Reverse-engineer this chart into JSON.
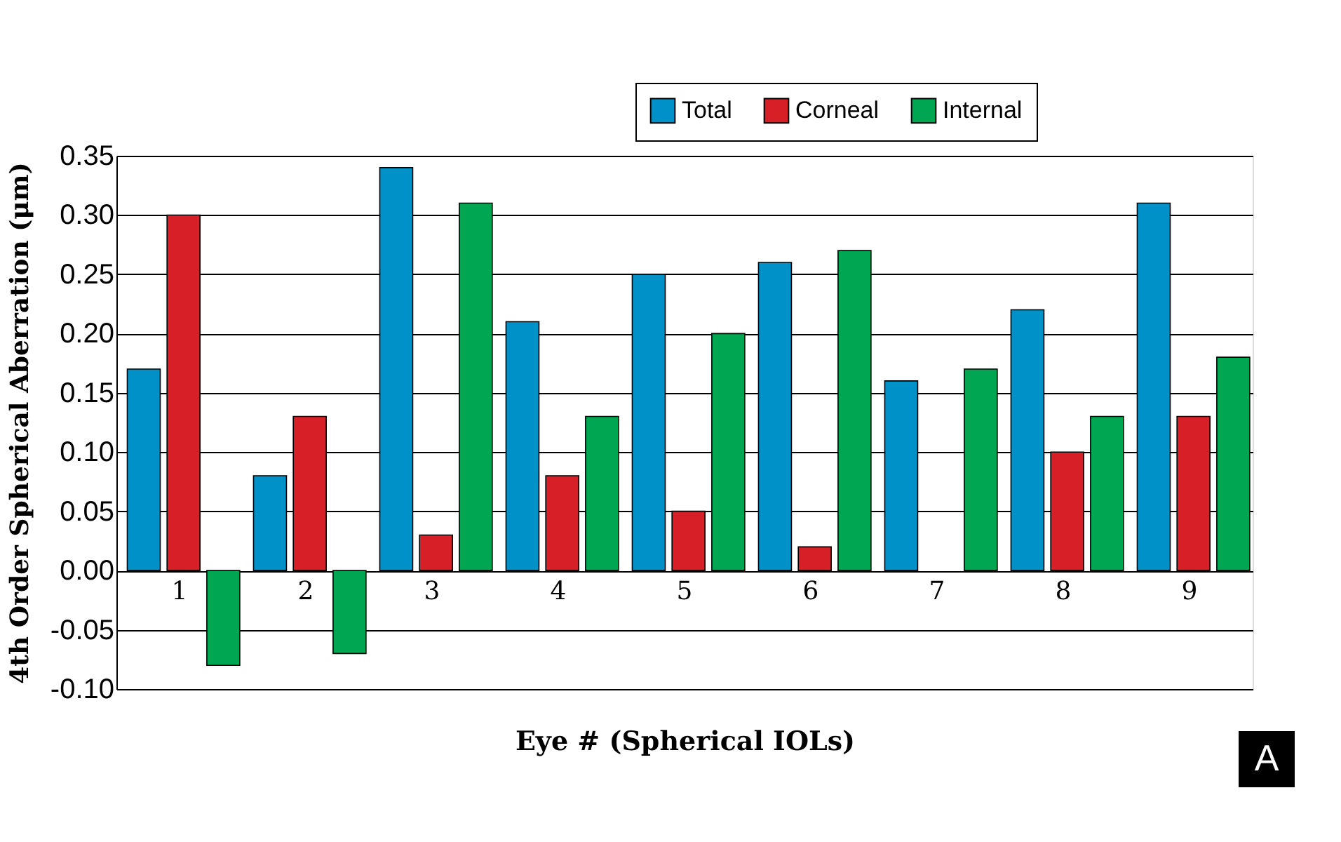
{
  "chart_data": {
    "type": "bar",
    "xlabel": "Eye # (Spherical IOLs)",
    "ylabel": "4th Order Spherical Aberration (μm)",
    "categories": [
      "1",
      "2",
      "3",
      "4",
      "5",
      "6",
      "7",
      "8",
      "9"
    ],
    "series": [
      {
        "name": "Total",
        "color": "#0091c9",
        "values": [
          0.17,
          0.08,
          0.34,
          0.21,
          0.25,
          0.26,
          0.16,
          0.22,
          0.31
        ]
      },
      {
        "name": "Corneal",
        "color": "#d71f27",
        "values": [
          0.3,
          0.13,
          0.03,
          0.08,
          0.05,
          0.02,
          0.0,
          0.1,
          0.13
        ]
      },
      {
        "name": "Internal",
        "color": "#00a651",
        "values": [
          -0.08,
          -0.07,
          0.31,
          0.13,
          0.2,
          0.27,
          0.17,
          0.13,
          0.18
        ]
      }
    ],
    "ylim": [
      -0.1,
      0.35
    ],
    "yticks": [
      {
        "value": -0.1,
        "label": "-0.10"
      },
      {
        "value": -0.05,
        "label": "-0.05"
      },
      {
        "value": 0,
        "label": "0.00"
      },
      {
        "value": 0.05,
        "label": "0.05"
      },
      {
        "value": 0.1,
        "label": "0.10"
      },
      {
        "value": 0.15,
        "label": "0.15"
      },
      {
        "value": 0.2,
        "label": "0.20"
      },
      {
        "value": 0.25,
        "label": "0.25"
      },
      {
        "value": 0.3,
        "label": "0.30"
      },
      {
        "value": 0.35,
        "label": "0.35"
      }
    ],
    "grid": "y",
    "legend": "top right",
    "annotations": [
      "A"
    ]
  }
}
